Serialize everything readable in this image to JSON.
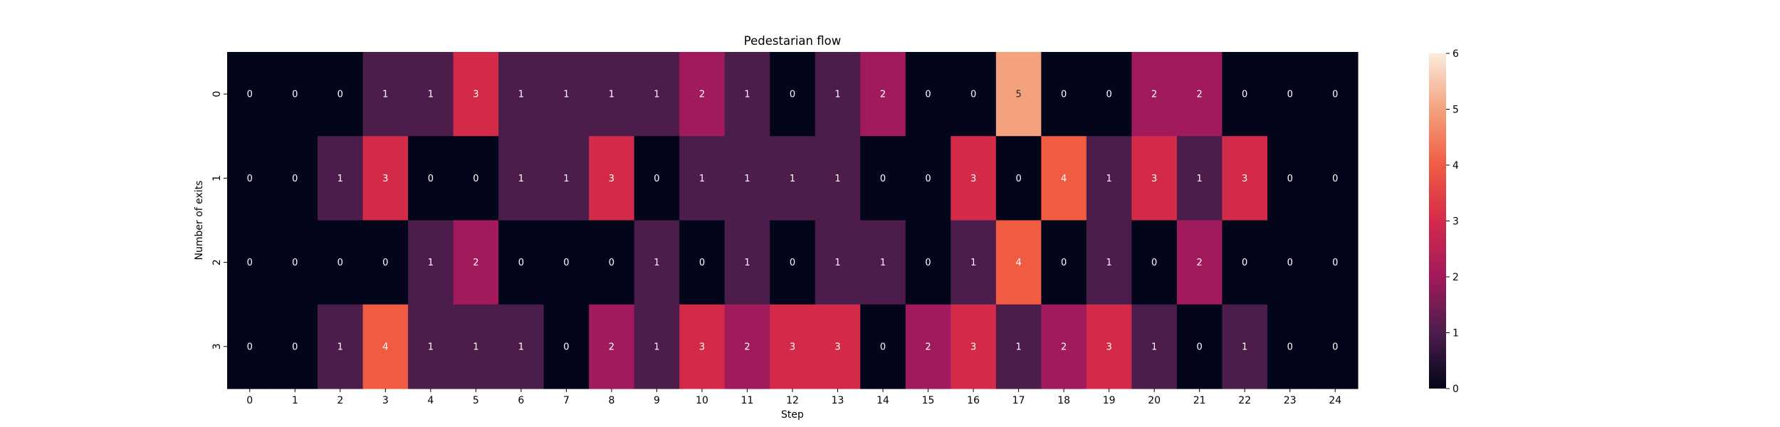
{
  "chart_data": {
    "type": "heatmap",
    "title": "Pedestarian flow",
    "xlabel": "Step",
    "ylabel": "Number of exits",
    "x": [
      "0",
      "1",
      "2",
      "3",
      "4",
      "5",
      "6",
      "7",
      "8",
      "9",
      "10",
      "11",
      "12",
      "13",
      "14",
      "15",
      "16",
      "17",
      "18",
      "19",
      "20",
      "21",
      "22",
      "23",
      "24"
    ],
    "y": [
      "0",
      "1",
      "2",
      "3"
    ],
    "values": [
      [
        0,
        0,
        0,
        1,
        1,
        3,
        1,
        1,
        1,
        1,
        2,
        1,
        0,
        1,
        2,
        0,
        0,
        5,
        0,
        0,
        2,
        2,
        0,
        0,
        0
      ],
      [
        0,
        0,
        1,
        3,
        0,
        0,
        1,
        1,
        3,
        0,
        1,
        1,
        1,
        1,
        0,
        0,
        3,
        0,
        4,
        1,
        3,
        1,
        3,
        0,
        0
      ],
      [
        0,
        0,
        0,
        0,
        1,
        2,
        0,
        0,
        0,
        1,
        0,
        1,
        0,
        1,
        1,
        0,
        1,
        4,
        0,
        1,
        0,
        2,
        0,
        0,
        0
      ],
      [
        0,
        0,
        1,
        4,
        1,
        1,
        1,
        0,
        2,
        1,
        3,
        2,
        3,
        3,
        0,
        2,
        3,
        1,
        2,
        3,
        1,
        0,
        1,
        0,
        0
      ]
    ],
    "colorbar": {
      "vmin": 0,
      "vmax": 6,
      "ticks": [
        "0",
        "1",
        "2",
        "3",
        "4",
        "5",
        "6"
      ],
      "colormap": "rocket",
      "colors": {
        "0": "#03051a",
        "1": "#4c1d4b",
        "2": "#a11a5b",
        "3": "#d42a4a",
        "4": "#f05c42",
        "5": "#f4a27e",
        "6": "#faebdd"
      }
    },
    "annotations": true,
    "grid": false,
    "legend": "none"
  }
}
